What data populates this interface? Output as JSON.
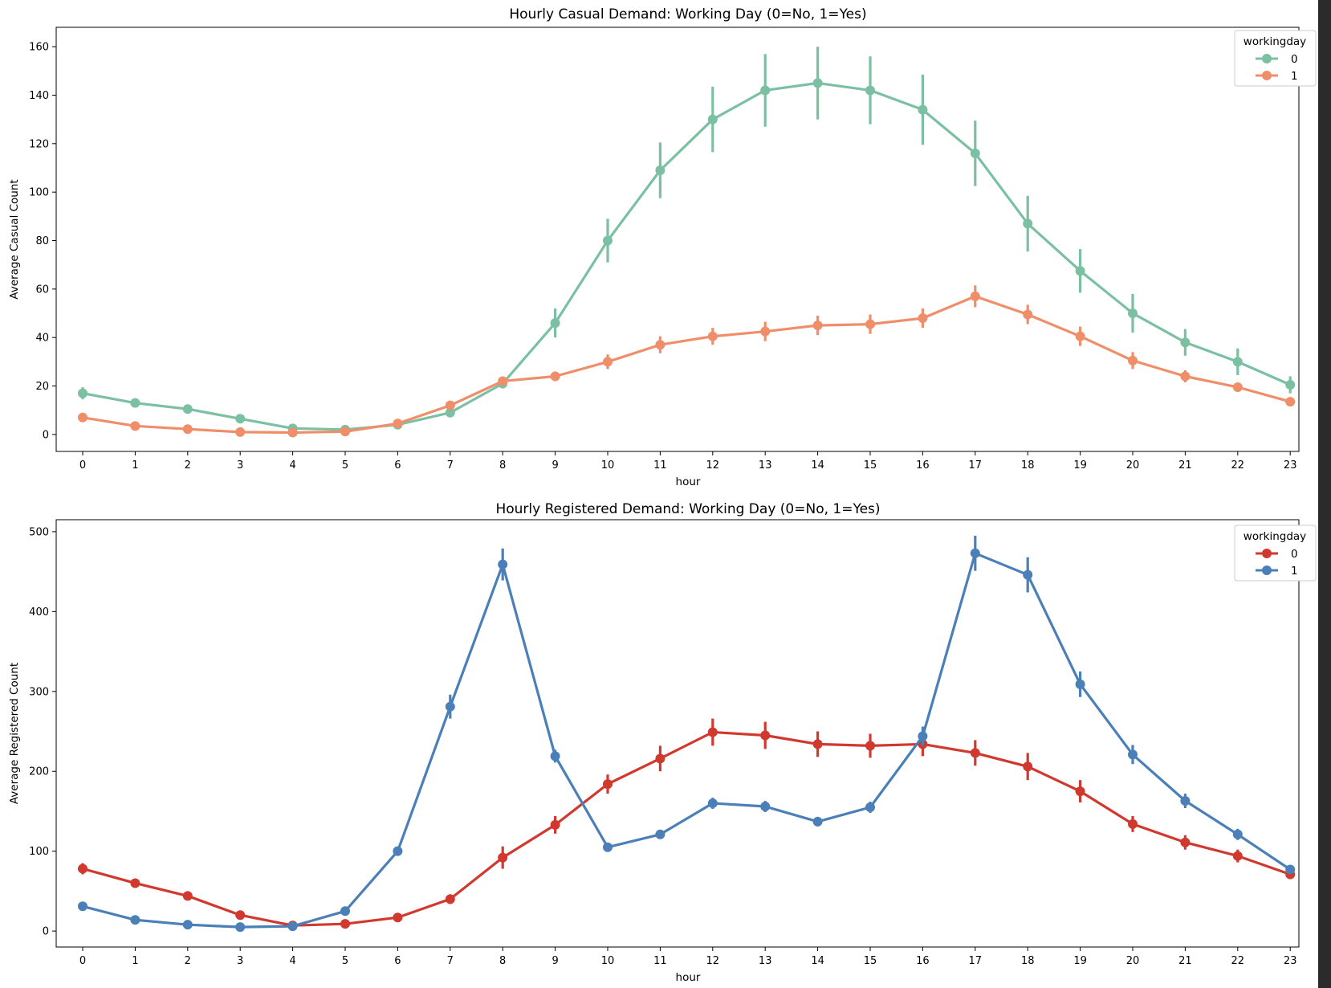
{
  "chart_data": [
    {
      "type": "line",
      "title": "Hourly Casual Demand: Working Day (0=No, 1=Yes)",
      "xlabel": "hour",
      "ylabel": "Average Casual Count",
      "ylim": [
        -7,
        168
      ],
      "yticks": [
        0,
        20,
        40,
        60,
        80,
        100,
        120,
        140,
        160
      ],
      "categories": [
        "0",
        "1",
        "2",
        "3",
        "4",
        "5",
        "6",
        "7",
        "8",
        "9",
        "10",
        "11",
        "12",
        "13",
        "14",
        "15",
        "16",
        "17",
        "18",
        "19",
        "20",
        "21",
        "22",
        "23"
      ],
      "legend": {
        "title": "workingday",
        "placement": "top-right"
      },
      "series": [
        {
          "name": "0",
          "color": "#7bc0a3",
          "values": [
            17,
            13,
            10.5,
            6.5,
            2.5,
            2,
            4,
            9,
            21,
            46,
            80,
            109,
            130,
            142,
            145,
            142,
            134,
            116,
            87,
            67.5,
            50,
            38,
            30,
            20.5
          ],
          "err": [
            2.5,
            1.5,
            1.2,
            1,
            0.6,
            0.6,
            0.8,
            1.5,
            2,
            6,
            9,
            11.5,
            13.5,
            15,
            15,
            14,
            14.5,
            13.5,
            11.5,
            9,
            8,
            5.5,
            5.5,
            3.5
          ]
        },
        {
          "name": "1",
          "color": "#ef8e69",
          "values": [
            7,
            3.5,
            2.2,
            1,
            0.8,
            1.2,
            4.5,
            12,
            22,
            24,
            30,
            37,
            40.5,
            42.5,
            45,
            45.5,
            48,
            57,
            49.5,
            40.5,
            30.5,
            24,
            19.5,
            13.5
          ],
          "err": [
            0.8,
            0.5,
            0.4,
            0.3,
            0.2,
            0.3,
            0.6,
            1.2,
            1.8,
            2,
            3,
            3.5,
            3.5,
            4,
            4,
            4,
            4,
            4.5,
            4,
            4,
            3.5,
            2.5,
            1.8,
            1.5
          ]
        }
      ]
    },
    {
      "type": "line",
      "title": "Hourly Registered Demand: Working Day (0=No, 1=Yes)",
      "xlabel": "hour",
      "ylabel": "Average Registered Count",
      "ylim": [
        -20,
        515
      ],
      "yticks": [
        0,
        100,
        200,
        300,
        400,
        500
      ],
      "categories": [
        "0",
        "1",
        "2",
        "3",
        "4",
        "5",
        "6",
        "7",
        "8",
        "9",
        "10",
        "11",
        "12",
        "13",
        "14",
        "15",
        "16",
        "17",
        "18",
        "19",
        "20",
        "21",
        "22",
        "23"
      ],
      "legend": {
        "title": "workingday",
        "placement": "top-right"
      },
      "series": [
        {
          "name": "0",
          "color": "#d1382e",
          "values": [
            78,
            60,
            44,
            20,
            7,
            9,
            17,
            40,
            92,
            133,
            184,
            216,
            249,
            245,
            234,
            232,
            234,
            223,
            206,
            175,
            134,
            111,
            94,
            71
          ],
          "err": [
            7,
            4,
            3,
            2,
            1,
            1,
            2,
            6,
            14,
            11,
            12,
            16,
            17,
            17,
            16,
            15,
            15,
            16,
            17,
            14,
            10,
            9,
            8,
            6
          ]
        },
        {
          "name": "1",
          "color": "#4a7fb8",
          "values": [
            31,
            14,
            8,
            5,
            6,
            25,
            100,
            281,
            459,
            219,
            105,
            121,
            160,
            156,
            137,
            155,
            244,
            473,
            446,
            309,
            221,
            163,
            121,
            77
          ],
          "err": [
            2,
            1.5,
            1,
            0.8,
            0.8,
            2,
            4,
            15,
            20,
            8,
            4,
            5,
            7,
            7,
            6,
            7,
            12,
            22,
            22,
            16,
            12,
            9,
            7,
            4
          ]
        }
      ]
    }
  ]
}
